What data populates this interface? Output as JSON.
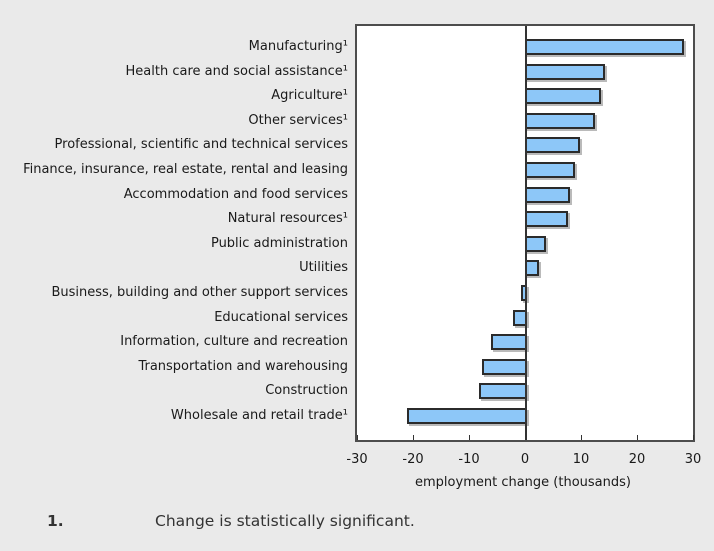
{
  "chart_data": {
    "type": "bar",
    "orientation": "horizontal",
    "categories": [
      "Manufacturing¹",
      "Health care and social assistance¹",
      "Agriculture¹",
      "Other services¹",
      "Professional, scientific and technical services",
      "Finance, insurance, real estate, rental and leasing",
      "Accommodation and food services",
      "Natural resources¹",
      "Public administration",
      "Utilities",
      "Business, building and other support services",
      "Educational services",
      "Information, culture and recreation",
      "Transportation and warehousing",
      "Construction",
      "Wholesale and retail trade¹"
    ],
    "values": [
      28,
      14,
      13.2,
      12.2,
      9.5,
      8.5,
      7.7,
      7.3,
      3.4,
      2.1,
      -0.7,
      -2.1,
      -6,
      -7.6,
      -8.3,
      -21
    ],
    "xlabel": "employment change (thousands)",
    "xlim": [
      -30,
      30
    ],
    "xticks": [
      -30,
      -20,
      -10,
      0,
      10,
      20,
      30
    ],
    "grid": false,
    "legend": "none",
    "bar_fill": "#8DC7F8",
    "bar_border": "#2B2B2B",
    "significance_note_marker": "¹"
  },
  "footnote": {
    "marker": "1.",
    "text": "Change is statistically significant."
  },
  "colors": {
    "background": "#EAEAEA",
    "plot_background": "#FFFFFF",
    "plot_border": "#4D4D4D",
    "axis": "#333333",
    "text": "#1A1A1A"
  }
}
